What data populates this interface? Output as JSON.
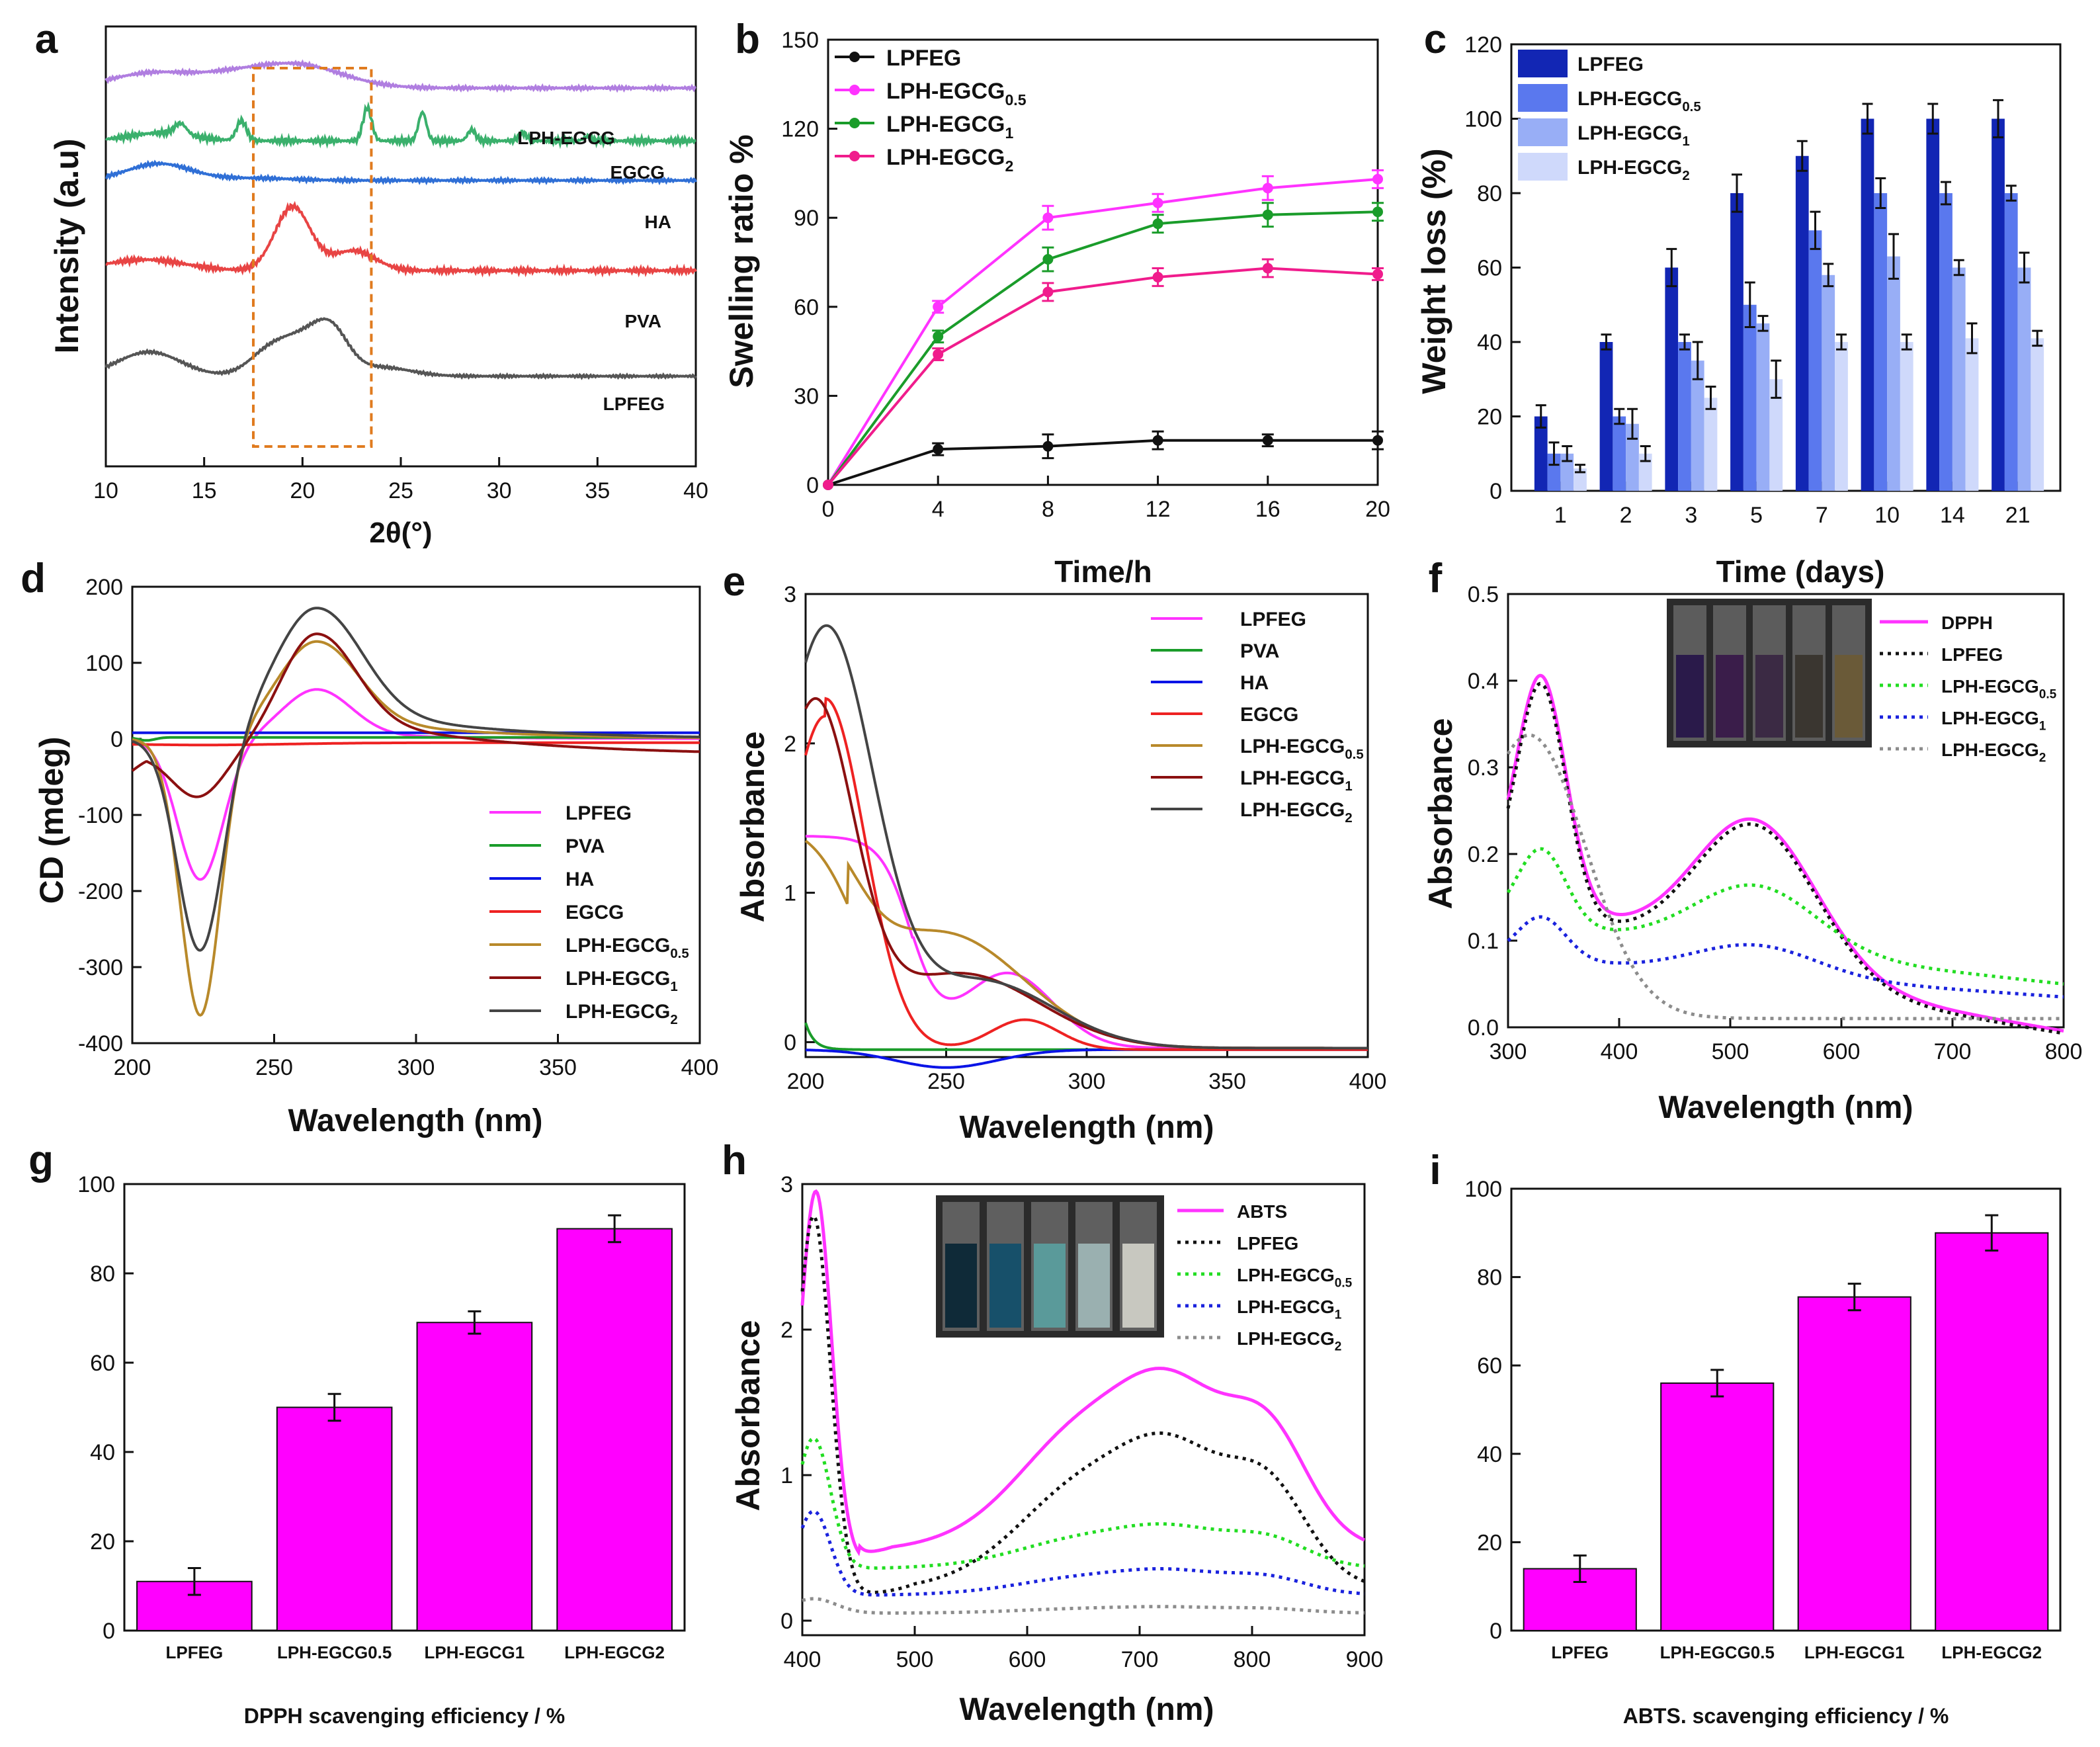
{
  "figure": {
    "colors": {
      "magenta": "#ff00ff",
      "pink": "#f01c8c",
      "green": "#1a9c2a",
      "black": "#111111",
      "blue": "#0a14e6",
      "red": "#ee2222",
      "olive": "#b8892a",
      "darkred": "#8b1010",
      "gray": "#555555",
      "lime": "#22dd22",
      "dotgray": "#8c8c8c",
      "navy": "#0a1fb0"
    }
  },
  "chart_data": [
    {
      "id": "a",
      "type": "line",
      "panel_label": "a",
      "xlabel": "2θ(°)",
      "ylabel": "Intensity (a.u)",
      "xlim": [
        10,
        40
      ],
      "xticks": [
        10,
        15,
        20,
        25,
        30,
        35,
        40
      ],
      "series": [
        {
          "name": "LPH-EGCG",
          "color": "#b07ee0",
          "label": "LPH-EGCG"
        },
        {
          "name": "EGCG",
          "color": "#3ab06c",
          "label": "EGCG"
        },
        {
          "name": "HA",
          "color": "#2f6fd6",
          "label": "HA"
        },
        {
          "name": "PVA",
          "color": "#e84444",
          "label": "PVA"
        },
        {
          "name": "LPFEG",
          "color": "#555555",
          "label": "LPFEG"
        }
      ],
      "annotations": [
        "dashed box 17.5–23.5°"
      ]
    },
    {
      "id": "b",
      "type": "line",
      "panel_label": "b",
      "xlabel": "Time/h",
      "ylabel": "Swelling ratio %",
      "xlim": [
        0,
        20
      ],
      "ylim": [
        0,
        150
      ],
      "xticks": [
        0,
        4,
        8,
        12,
        16,
        20
      ],
      "yticks": [
        0,
        30,
        60,
        90,
        120,
        150
      ],
      "x": [
        0,
        4,
        8,
        12,
        16,
        20
      ],
      "series": [
        {
          "name": "LPFEG",
          "sub": "",
          "color": "#111111",
          "values": [
            0,
            12,
            13,
            15,
            15,
            15
          ],
          "err": [
            0,
            2,
            4,
            3,
            2,
            3
          ]
        },
        {
          "name": "LPH-EGCG",
          "sub": "0.5",
          "color": "#ff33ff",
          "values": [
            0,
            60,
            90,
            95,
            100,
            103
          ],
          "err": [
            0,
            2,
            4,
            3,
            4,
            3
          ]
        },
        {
          "name": "LPH-EGCG",
          "sub": "1",
          "color": "#1a9c2a",
          "values": [
            0,
            50,
            76,
            88,
            91,
            92
          ],
          "err": [
            0,
            2,
            4,
            3,
            4,
            3
          ]
        },
        {
          "name": "LPH-EGCG",
          "sub": "2",
          "color": "#f01c8c",
          "values": [
            0,
            44,
            65,
            70,
            73,
            71
          ],
          "err": [
            0,
            2,
            3,
            3,
            3,
            2
          ]
        }
      ]
    },
    {
      "id": "c",
      "type": "bar",
      "panel_label": "c",
      "xlabel": "Time (days)",
      "ylabel": "Weight loss (%)",
      "ylim": [
        0,
        120
      ],
      "yticks": [
        0,
        20,
        40,
        60,
        80,
        100,
        120
      ],
      "categories": [
        "1",
        "2",
        "3",
        "5",
        "7",
        "10",
        "14",
        "21"
      ],
      "series": [
        {
          "name": "LPFEG",
          "sub": "",
          "color": "#1226b4",
          "values": [
            20,
            40,
            60,
            80,
            90,
            100,
            100,
            100
          ],
          "err": [
            3,
            2,
            5,
            5,
            4,
            4,
            4,
            5
          ]
        },
        {
          "name": "LPH-EGCG",
          "sub": "0.5",
          "color": "#5a78ee",
          "values": [
            10,
            20,
            40,
            50,
            70,
            80,
            80,
            80
          ],
          "err": [
            3,
            2,
            2,
            6,
            5,
            4,
            3,
            2
          ]
        },
        {
          "name": "LPH-EGCG",
          "sub": "1",
          "color": "#98aef6",
          "values": [
            10,
            18,
            35,
            45,
            58,
            63,
            60,
            60
          ],
          "err": [
            2,
            4,
            5,
            2,
            3,
            6,
            2,
            4
          ]
        },
        {
          "name": "LPH-EGCG",
          "sub": "2",
          "color": "#cfd9fb",
          "values": [
            6,
            10,
            25,
            30,
            40,
            40,
            41,
            41
          ],
          "err": [
            1,
            2,
            3,
            5,
            2,
            2,
            4,
            2
          ]
        }
      ]
    },
    {
      "id": "d",
      "type": "line",
      "panel_label": "d",
      "xlabel": "Wavelength (nm)",
      "ylabel": "CD (mdeg)",
      "xlim": [
        200,
        400
      ],
      "ylim": [
        -400,
        200
      ],
      "xticks": [
        200,
        250,
        300,
        350,
        400
      ],
      "yticks": [
        -400,
        -300,
        -200,
        -100,
        0,
        100,
        200
      ],
      "series": [
        {
          "name": "LPFEG",
          "sub": "",
          "color": "#ff33ff"
        },
        {
          "name": "PVA",
          "sub": "",
          "color": "#1a9c2a"
        },
        {
          "name": "HA",
          "sub": "",
          "color": "#0a14e6"
        },
        {
          "name": "EGCG",
          "sub": "",
          "color": "#ee2222"
        },
        {
          "name": "LPH-EGCG",
          "sub": "0.5",
          "color": "#b8892a"
        },
        {
          "name": "LPH-EGCG",
          "sub": "1",
          "color": "#8b1010"
        },
        {
          "name": "LPH-EGCG",
          "sub": "2",
          "color": "#444444"
        }
      ]
    },
    {
      "id": "e",
      "type": "line",
      "panel_label": "e",
      "xlabel": "Wavelength (nm)",
      "ylabel": "Absorbance",
      "xlim": [
        200,
        400
      ],
      "ylim": [
        -0.1,
        3
      ],
      "xticks": [
        200,
        250,
        300,
        350,
        400
      ],
      "yticks": [
        0,
        1,
        2,
        3
      ],
      "series": [
        {
          "name": "LPFEG",
          "sub": "",
          "color": "#ff33ff"
        },
        {
          "name": "PVA",
          "sub": "",
          "color": "#1a9c2a"
        },
        {
          "name": "HA",
          "sub": "",
          "color": "#0a14e6"
        },
        {
          "name": "EGCG",
          "sub": "",
          "color": "#ee2222"
        },
        {
          "name": "LPH-EGCG",
          "sub": "0.5",
          "color": "#b8892a"
        },
        {
          "name": "LPH-EGCG",
          "sub": "1",
          "color": "#8b1010"
        },
        {
          "name": "LPH-EGCG",
          "sub": "2",
          "color": "#444444"
        }
      ]
    },
    {
      "id": "f",
      "type": "line",
      "panel_label": "f",
      "xlabel": "Wavelength (nm)",
      "ylabel": "Absorbance",
      "xlim": [
        300,
        800
      ],
      "ylim": [
        0,
        0.5
      ],
      "xticks": [
        300,
        400,
        500,
        600,
        700,
        800
      ],
      "yticks": [
        "0.0",
        "0.1",
        "0.2",
        "0.3",
        "0.4",
        "0.5"
      ],
      "series": [
        {
          "name": "DPPH",
          "sub": "",
          "color": "#ff33ff"
        },
        {
          "name": "LPFEG",
          "sub": "",
          "color": "#111111"
        },
        {
          "name": "LPH-EGCG",
          "sub": "0.5",
          "color": "#22dd22"
        },
        {
          "name": "LPH-EGCG",
          "sub": "1",
          "color": "#1a22dd"
        },
        {
          "name": "LPH-EGCG",
          "sub": "2",
          "color": "#8c8c8c"
        }
      ]
    },
    {
      "id": "g",
      "type": "bar",
      "panel_label": "g",
      "xlabel": "DPPH scavenging  efficiency / %",
      "ylabel": "",
      "ylim": [
        0,
        100
      ],
      "yticks": [
        0,
        20,
        40,
        60,
        80,
        100
      ],
      "categories": [
        "LPFEG",
        "LPH-EGCG0.5",
        "LPH-EGCG1",
        "LPH-EGCG2"
      ],
      "values": [
        11,
        50,
        69,
        90
      ],
      "err": [
        3,
        3,
        2.5,
        3
      ],
      "color": "#ff00ff"
    },
    {
      "id": "h",
      "type": "line",
      "panel_label": "h",
      "xlabel": "Wavelength (nm)",
      "ylabel": "Absorbance",
      "xlim": [
        400,
        900
      ],
      "ylim": [
        -0.1,
        3
      ],
      "xticks": [
        400,
        500,
        600,
        700,
        800,
        900
      ],
      "yticks": [
        0,
        1,
        2,
        3
      ],
      "series": [
        {
          "name": "ABTS",
          "sub": "",
          "color": "#ff33ff"
        },
        {
          "name": "LPFEG",
          "sub": "",
          "color": "#111111"
        },
        {
          "name": "LPH-EGCG",
          "sub": "0.5",
          "color": "#22dd22"
        },
        {
          "name": "LPH-EGCG",
          "sub": "1",
          "color": "#1a22dd"
        },
        {
          "name": "LPH-EGCG",
          "sub": "2",
          "color": "#8c8c8c"
        }
      ]
    },
    {
      "id": "i",
      "type": "bar",
      "panel_label": "i",
      "xlabel": "ABTS. scavenging  efficiency / %",
      "ylabel": "",
      "ylim": [
        0,
        100
      ],
      "yticks": [
        0,
        20,
        40,
        60,
        80,
        100
      ],
      "categories": [
        "LPFEG",
        "LPH-EGCG0.5",
        "LPH-EGCG1",
        "LPH-EGCG2"
      ],
      "values": [
        14,
        56,
        75.5,
        90
      ],
      "err": [
        3,
        3,
        3,
        4
      ],
      "color": "#ff00ff"
    }
  ]
}
